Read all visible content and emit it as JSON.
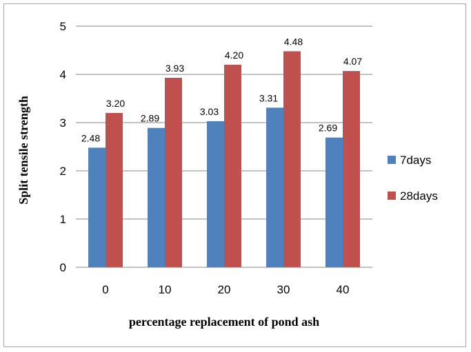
{
  "chart_data": {
    "type": "bar",
    "categories": [
      "0",
      "10",
      "20",
      "30",
      "40"
    ],
    "series": [
      {
        "name": "7days",
        "values": [
          2.48,
          2.89,
          3.03,
          3.31,
          2.69
        ],
        "labels": [
          "2.48",
          "2.89",
          "3.03",
          "3.31",
          "2.69"
        ],
        "color": "#4f81bd"
      },
      {
        "name": "28days",
        "values": [
          3.2,
          3.93,
          4.2,
          4.48,
          4.07
        ],
        "labels": [
          "3.20",
          "3.93",
          "4.20",
          "4.48",
          "4.07"
        ],
        "color": "#c0504d"
      }
    ],
    "xlabel": "percentage replacement of pond ash",
    "ylabel": "Split  tensile strength",
    "ylim": [
      0,
      5
    ],
    "yticks": [
      "0",
      "1",
      "2",
      "3",
      "4",
      "5"
    ],
    "grid": true,
    "legend_position": "right"
  }
}
